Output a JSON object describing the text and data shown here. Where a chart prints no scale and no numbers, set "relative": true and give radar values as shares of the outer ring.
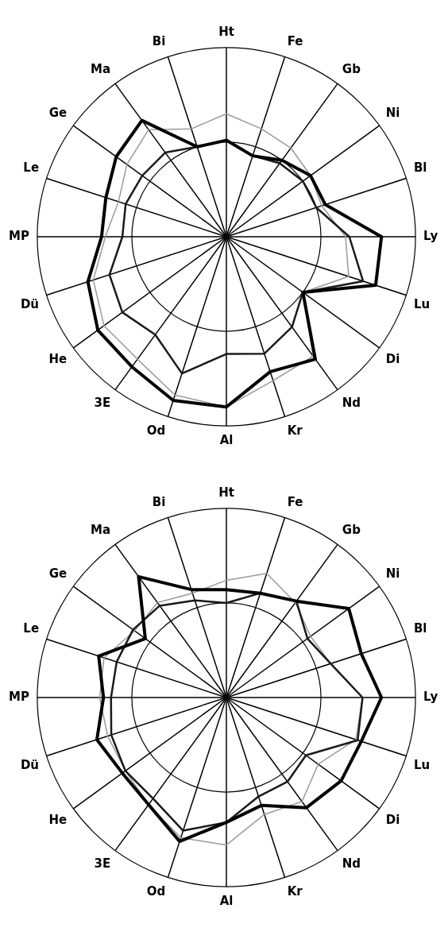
{
  "chart_data": [
    {
      "type": "radar",
      "relative": true,
      "grid": true,
      "marker": "none",
      "categories": [
        "Ht",
        "Fe",
        "Gb",
        "Ni",
        "Bl",
        "Ly",
        "Lu",
        "Di",
        "Nd",
        "Kr",
        "Al",
        "Od",
        "3E",
        "He",
        "Dü",
        "MP",
        "Le",
        "Ge",
        "Ma",
        "Bi"
      ],
      "series": [
        {
          "color": "#000000",
          "values": [
            0.51,
            0.45,
            0.5,
            0.55,
            0.55,
            0.82,
            0.83,
            0.5,
            0.8,
            0.75,
            0.9,
            0.91,
            0.85,
            0.84,
            0.77,
            0.66,
            0.67,
            0.72,
            0.76,
            0.5
          ]
        },
        {
          "color": "#1a1a1a",
          "values": [
            0.51,
            0.45,
            0.48,
            0.5,
            0.5,
            0.65,
            0.76,
            0.5,
            0.59,
            0.65,
            0.62,
            0.76,
            0.64,
            0.68,
            0.65,
            0.55,
            0.56,
            0.55,
            0.55,
            0.5
          ]
        },
        {
          "color": "#9a9a9a",
          "values": [
            0.65,
            0.6,
            0.58,
            0.55,
            0.53,
            0.63,
            0.68,
            0.5,
            0.78,
            0.8,
            0.9,
            0.88,
            0.8,
            0.8,
            0.74,
            0.64,
            0.6,
            0.65,
            0.7,
            0.6
          ]
        }
      ]
    },
    {
      "type": "radar",
      "relative": true,
      "grid": true,
      "marker": "none",
      "categories": [
        "Ht",
        "Fe",
        "Gb",
        "Ni",
        "Bl",
        "Ly",
        "Lu",
        "Di",
        "Nd",
        "Kr",
        "Al",
        "Od",
        "3E",
        "He",
        "Dü",
        "MP",
        "Le",
        "Ge",
        "Ma",
        "Bi"
      ],
      "series": [
        {
          "color": "#000000",
          "values": [
            0.57,
            0.58,
            0.63,
            0.8,
            0.75,
            0.82,
            0.75,
            0.75,
            0.72,
            0.6,
            0.66,
            0.8,
            0.7,
            0.68,
            0.72,
            0.65,
            0.71,
            0.53,
            0.79,
            0.6
          ]
        },
        {
          "color": "#1a1a1a",
          "values": [
            0.5,
            0.58,
            0.63,
            0.53,
            0.58,
            0.72,
            0.73,
            0.52,
            0.55,
            0.55,
            0.66,
            0.74,
            0.66,
            0.66,
            0.64,
            0.61,
            0.61,
            0.61,
            0.6,
            0.54
          ]
        },
        {
          "color": "#9a9a9a",
          "values": [
            0.62,
            0.69,
            0.62,
            0.55,
            0.58,
            0.72,
            0.72,
            0.6,
            0.68,
            0.65,
            0.78,
            0.78,
            0.7,
            0.66,
            0.66,
            0.67,
            0.68,
            0.6,
            0.62,
            0.58
          ]
        }
      ]
    }
  ]
}
